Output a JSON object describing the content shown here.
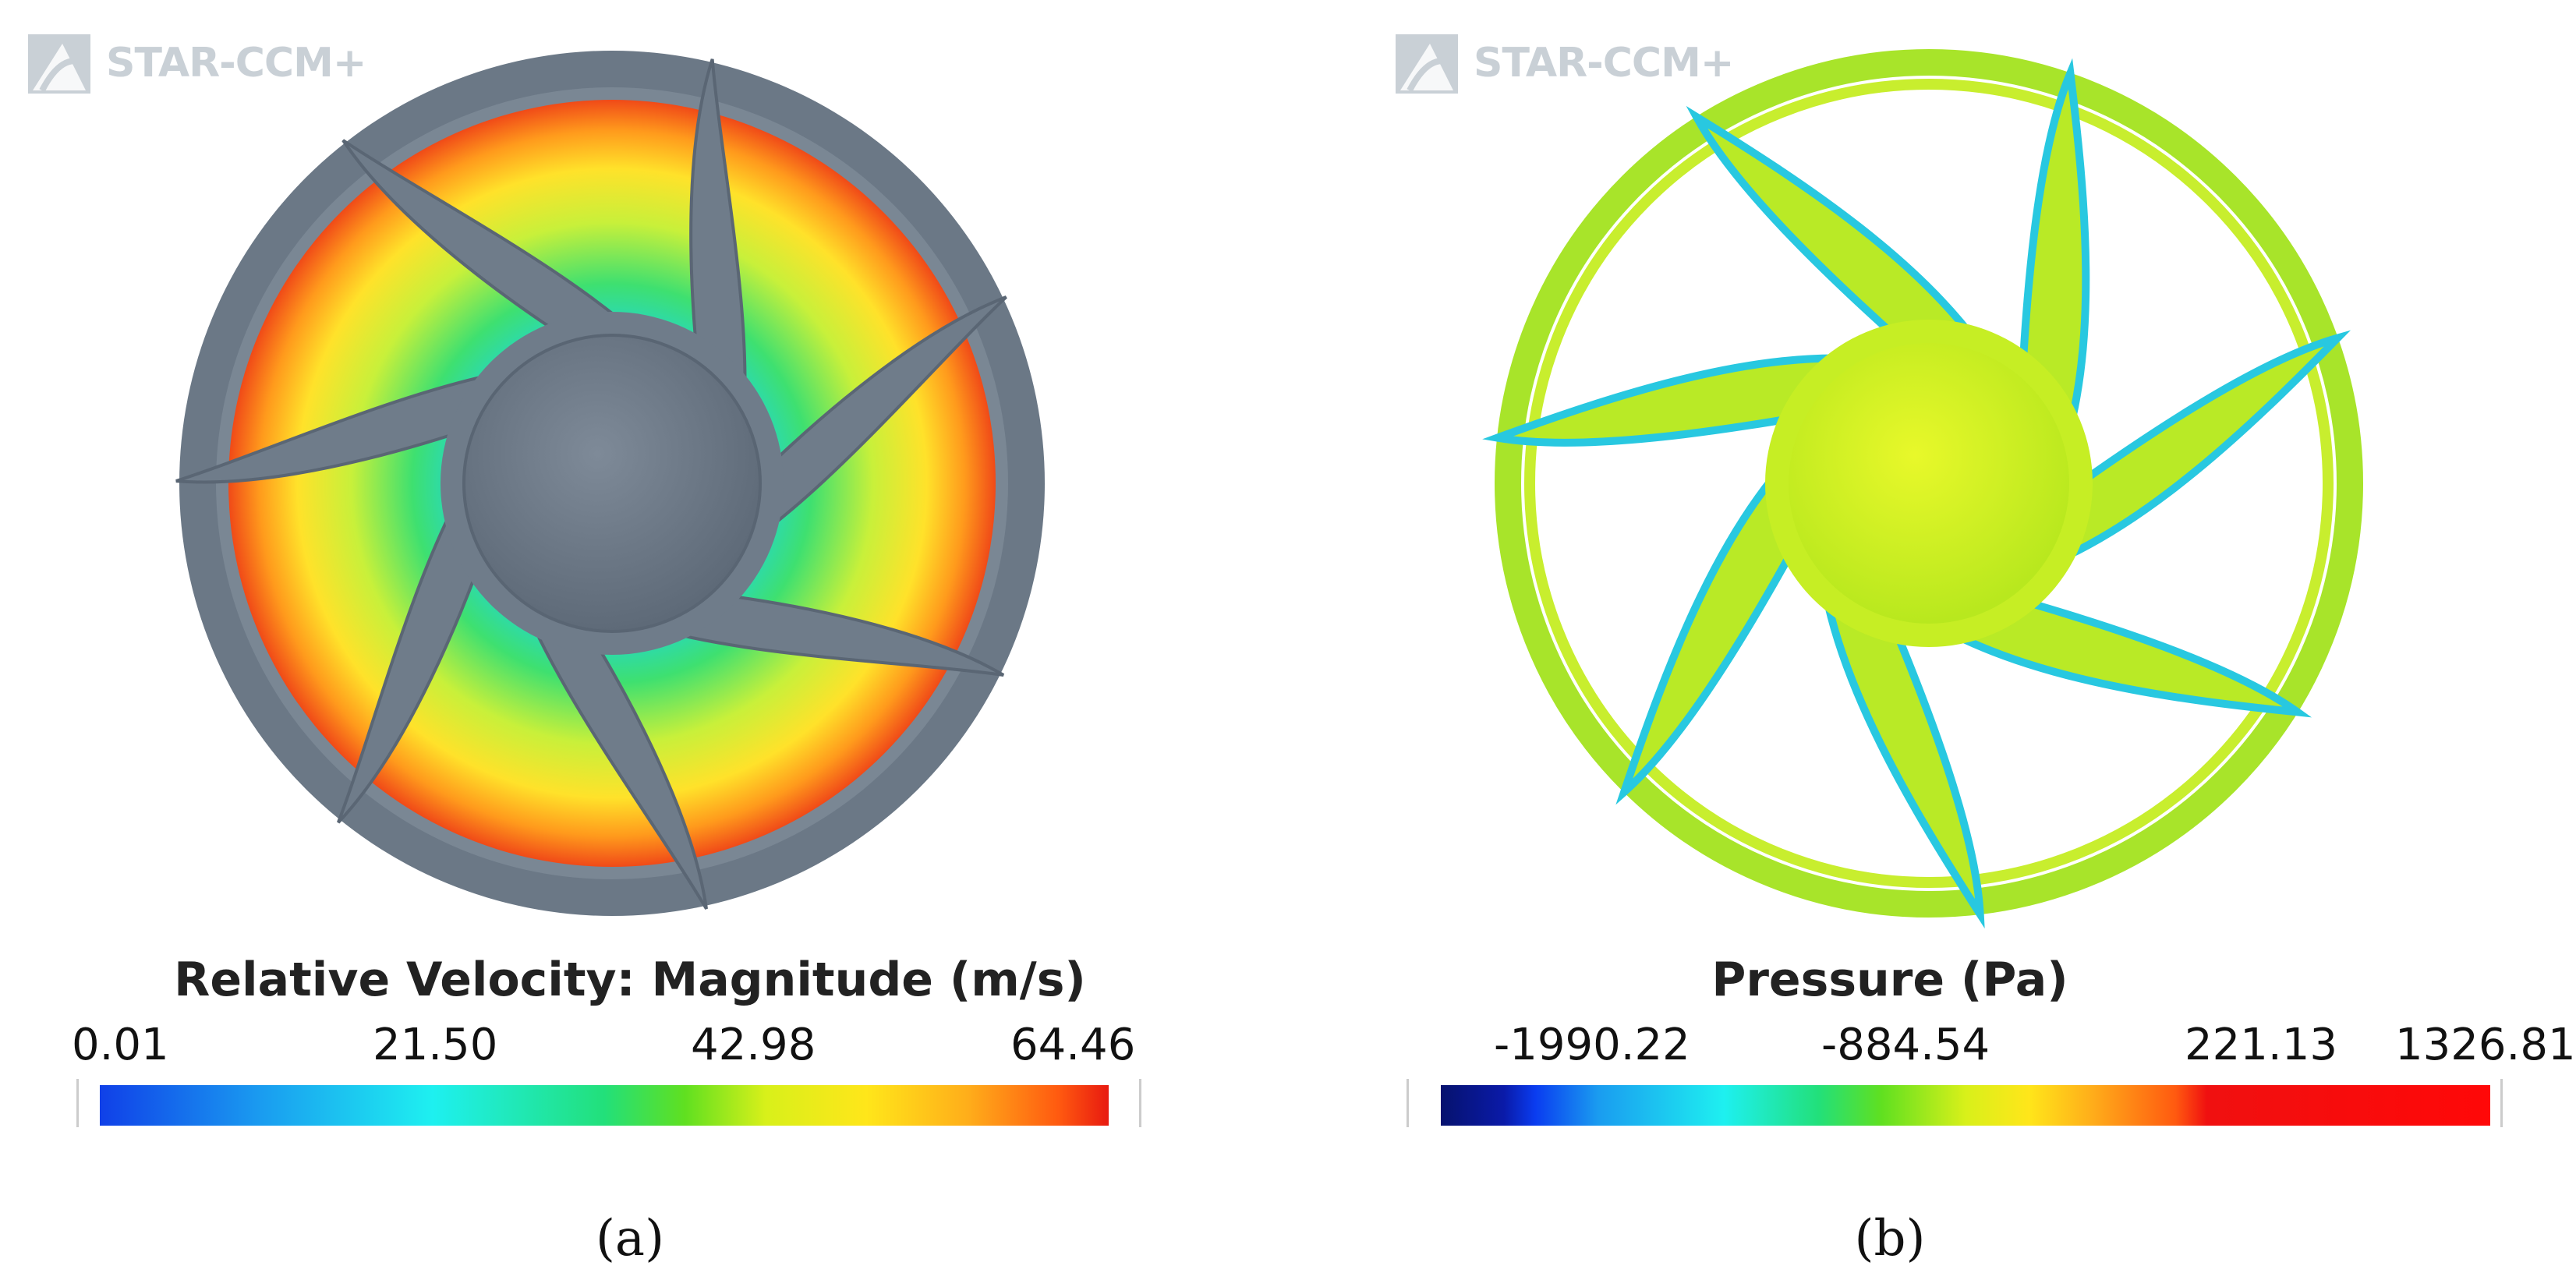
{
  "panels": [
    {
      "logo": "STAR-CCM+",
      "colorbar": {
        "title": "Relative Velocity: Magnitude (m/s)",
        "ticks": [
          "0.01",
          "21.50",
          "42.98",
          "64.46"
        ]
      },
      "caption": "(a)"
    },
    {
      "logo": "STAR-CCM+",
      "colorbar": {
        "title": "Pressure (Pa)",
        "ticks": [
          "-1990.22",
          "-884.54",
          "221.13",
          "1326.81"
        ]
      },
      "caption": "(b)"
    }
  ]
}
